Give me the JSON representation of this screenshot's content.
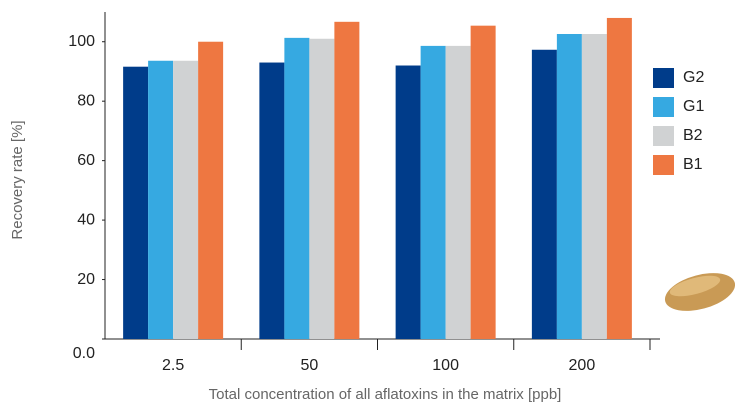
{
  "chart_data": {
    "type": "bar",
    "x_label": "Total concentration of all aflatoxins in the matrix [ppb]",
    "y_label": "Recovery rate [%]",
    "categories": [
      "2.5",
      "50",
      "100",
      "200"
    ],
    "series": [
      {
        "name": "G2",
        "color": "#003c8a",
        "values": [
          91.6,
          93,
          92,
          97.3
        ]
      },
      {
        "name": "G1",
        "color": "#36a9e1",
        "values": [
          93.6,
          101.3,
          98.6,
          102.6
        ]
      },
      {
        "name": "B2",
        "color": "#d0d2d3",
        "values": [
          93.6,
          101,
          98.6,
          102.6
        ]
      },
      {
        "name": "B1",
        "color": "#ee7741",
        "values": [
          100,
          106.7,
          105.4,
          108
        ]
      }
    ],
    "ylim": [
      0,
      110
    ],
    "yticks": [
      {
        "value": 0,
        "label": "0.0"
      },
      20,
      40,
      60,
      80,
      100
    ],
    "grid": false,
    "legend": "right"
  }
}
